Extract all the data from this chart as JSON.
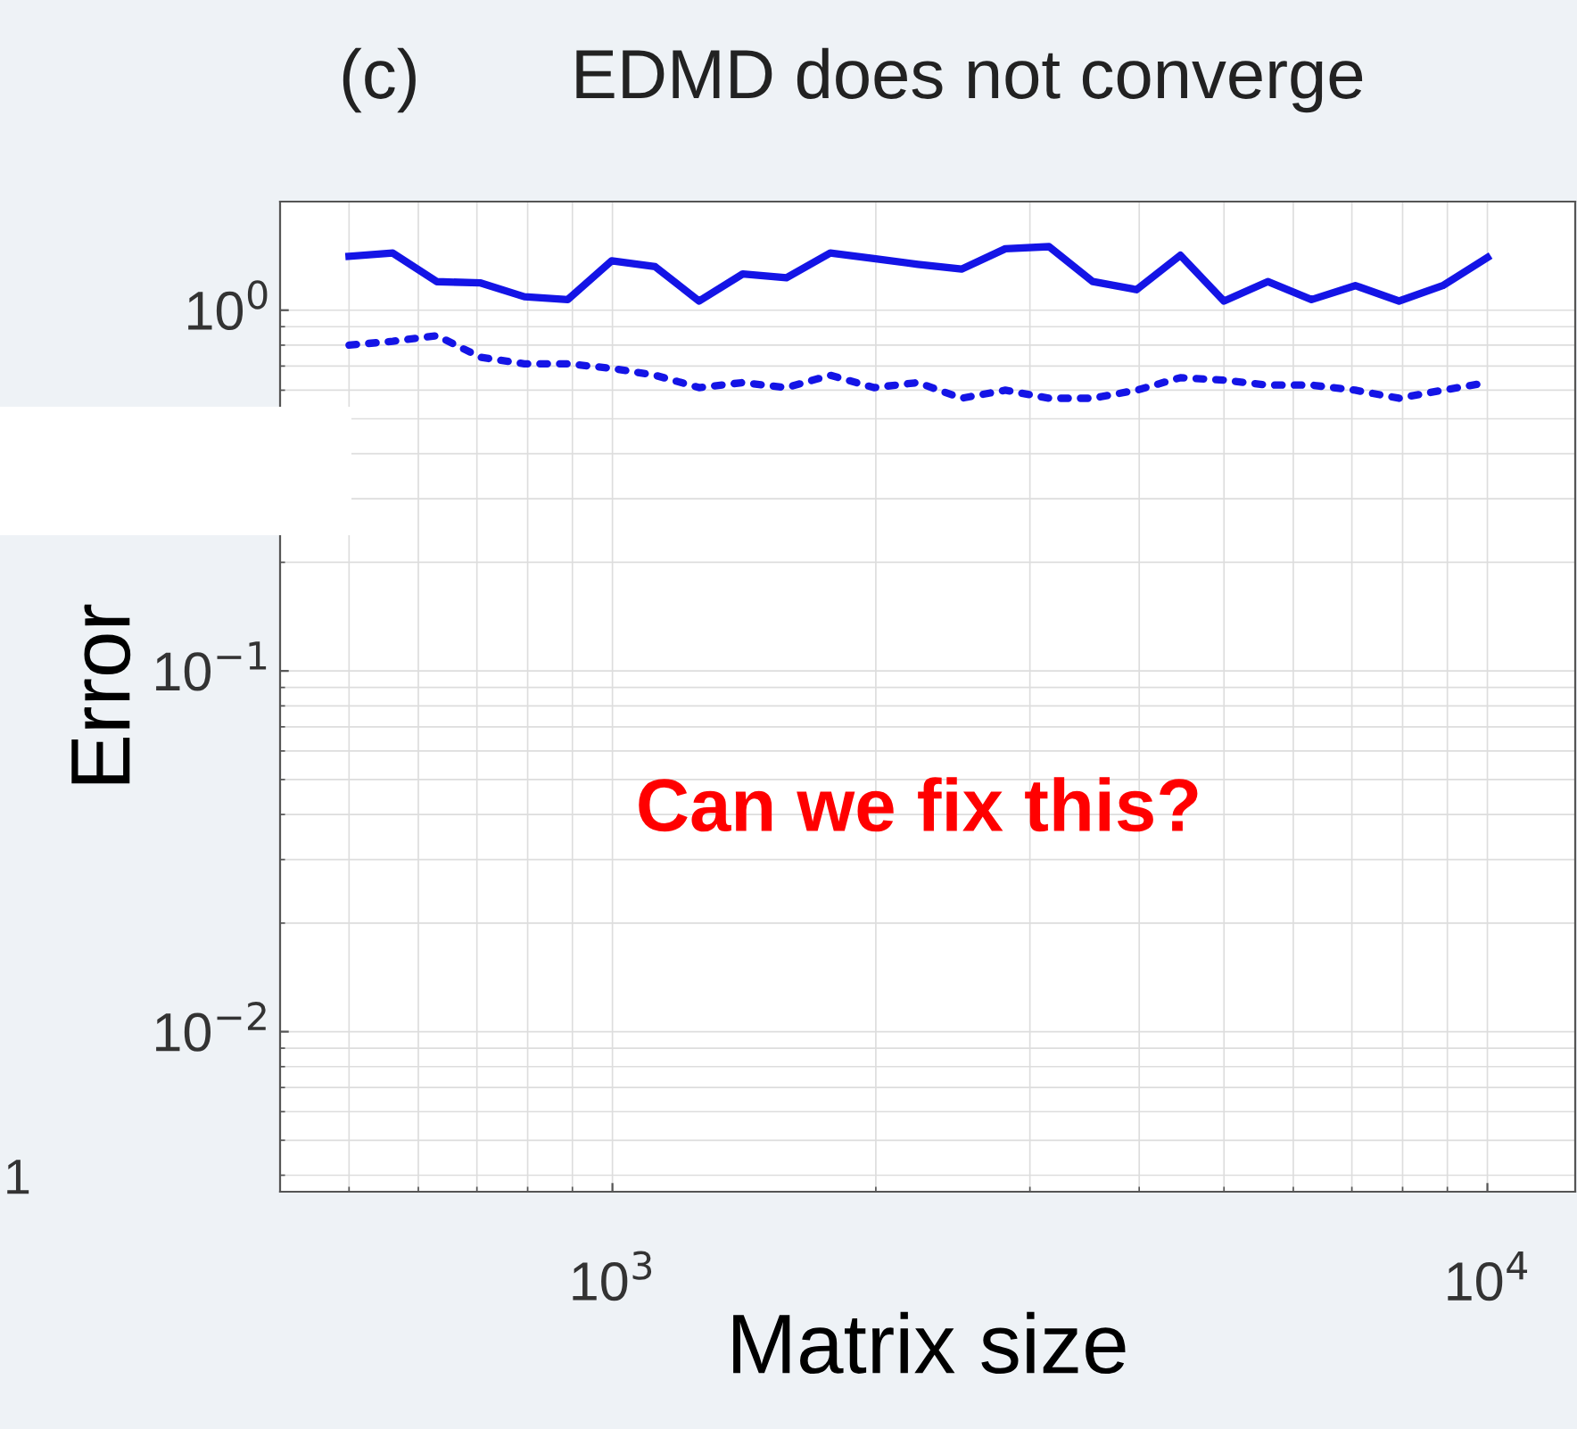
{
  "chart_data": {
    "type": "line",
    "title": "EDMD does not converge",
    "xlabel": "Matrix size",
    "ylabel": "Error",
    "x": [
      500,
      561,
      630,
      707,
      793,
      889,
      998,
      1119,
      1256,
      1409,
      1581,
      1774,
      1990,
      2234,
      2506,
      2812,
      3155,
      3540,
      3972,
      4457,
      5000,
      5610,
      6295,
      7063,
      7925,
      8892,
      10000
    ],
    "series": [
      {
        "color": "#1414e6",
        "line_style": "solid",
        "values": [
          1.41,
          1.44,
          1.2,
          1.19,
          1.09,
          1.07,
          1.37,
          1.32,
          1.06,
          1.26,
          1.23,
          1.44,
          1.39,
          1.34,
          1.3,
          1.48,
          1.5,
          1.2,
          1.14,
          1.42,
          1.06,
          1.2,
          1.07,
          1.17,
          1.06,
          1.17,
          1.4
        ]
      },
      {
        "color": "#1414e6",
        "line_style": "dotted",
        "values": [
          0.8,
          0.82,
          0.85,
          0.74,
          0.71,
          0.71,
          0.69,
          0.66,
          0.61,
          0.63,
          0.61,
          0.66,
          0.61,
          0.63,
          0.57,
          0.6,
          0.57,
          0.57,
          0.6,
          0.65,
          0.64,
          0.62,
          0.62,
          0.6,
          0.57,
          0.6,
          0.63
        ]
      }
    ],
    "log": "xy",
    "xlim": [
      417,
      12600
    ],
    "ylim": [
      0.0036,
      2
    ],
    "xticks": [
      {
        "value": 1000,
        "label": "10$^{3}$"
      },
      {
        "value": 10000,
        "label": "10$^{4}$"
      }
    ],
    "yticks": [
      {
        "value": 0.01,
        "label": "10$^{−2}$"
      },
      {
        "value": 0.1,
        "label": "10$^{−1}$"
      },
      {
        "value": 1,
        "label": "10$^{0}$"
      }
    ],
    "grid": true,
    "annotations": [
      "(c)",
      "Can we fix this?",
      "1"
    ]
  }
}
